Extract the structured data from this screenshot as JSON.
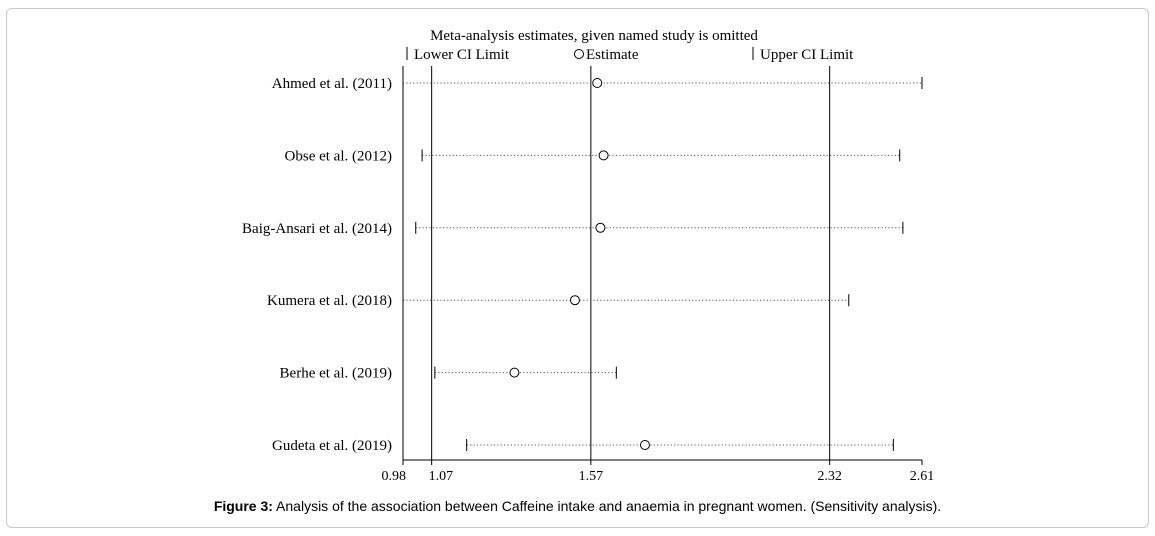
{
  "chart_data": {
    "type": "forest",
    "title": "Meta-analysis estimates, given named study is omitted",
    "legend": {
      "lower_label": "Lower CI Limit",
      "estimate_label": "Estimate",
      "upper_label": "Upper CI Limit",
      "placement": "top"
    },
    "xlim": [
      0.98,
      2.61
    ],
    "ticks": [
      {
        "value": 0.98,
        "label": "0.98"
      },
      {
        "value": 1.07,
        "label": "1.07"
      },
      {
        "value": 1.57,
        "label": "1.57"
      },
      {
        "value": 2.32,
        "label": "2.32"
      },
      {
        "value": 2.61,
        "label": "2.61"
      }
    ],
    "reference_lines": [
      1.07,
      1.57,
      2.32
    ],
    "studies": [
      {
        "label": "Ahmed et al. (2011)",
        "lower": 0.98,
        "estimate": 1.59,
        "upper": 2.61
      },
      {
        "label": "Obse et al. (2012)",
        "lower": 1.04,
        "estimate": 1.61,
        "upper": 2.54
      },
      {
        "label": "Baig-Ansari et al. (2014)",
        "lower": 1.02,
        "estimate": 1.6,
        "upper": 2.55
      },
      {
        "label": "Kumera et al. (2018)",
        "lower": 0.98,
        "estimate": 1.52,
        "upper": 2.38
      },
      {
        "label": "Berhe et al. (2019)",
        "lower": 1.08,
        "estimate": 1.33,
        "upper": 1.65
      },
      {
        "label": "Gudeta et al. (2019)",
        "lower": 1.18,
        "estimate": 1.74,
        "upper": 2.52
      }
    ]
  },
  "caption": {
    "bold": "Figure 3:",
    "text": " Analysis of the association between Caffeine intake and anaemia in pregnant women. (Sensitivity analysis)."
  }
}
